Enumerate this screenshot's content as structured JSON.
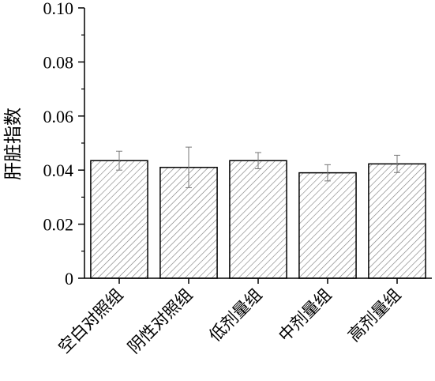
{
  "chart_data": {
    "type": "bar",
    "title": "",
    "xlabel": "",
    "ylabel": "肝脏指数",
    "ylim": [
      0,
      0.1
    ],
    "yticks": [
      "0",
      "0.02",
      "0.04",
      "0.06",
      "0.08",
      "0.10"
    ],
    "categories": [
      "空白对照组",
      "阴性对照组",
      "低剂量组",
      "中剂量组",
      "高剂量组"
    ],
    "values": [
      0.0435,
      0.041,
      0.0435,
      0.039,
      0.0423
    ],
    "errors": [
      0.0035,
      0.0075,
      0.003,
      0.003,
      0.0032
    ],
    "grid": false,
    "legend": "none",
    "bar_fill": "hatched",
    "colors": {
      "bar_stroke": "#000000",
      "hatch": "#7a7a7a",
      "error_bar": "#777777",
      "axis": "#000000"
    }
  }
}
